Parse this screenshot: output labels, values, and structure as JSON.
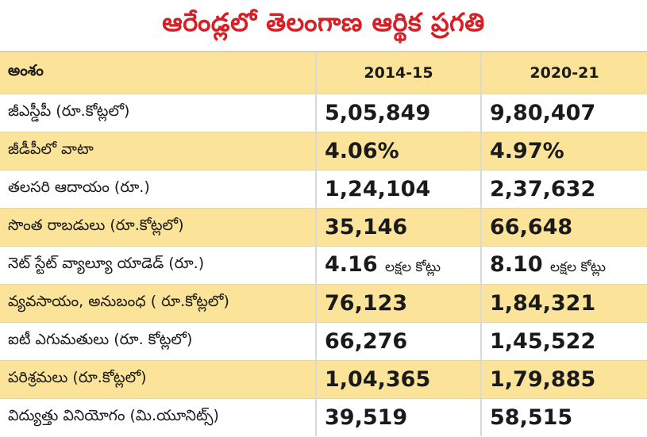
{
  "title": "ఆరేండ్లలో తెలంగాణ ఆర్థిక ప్రగతి",
  "colors": {
    "title": "#d81f26",
    "shaded_row": "#fbe39a",
    "plain_row": "#ffffff"
  },
  "table": {
    "headers": {
      "item": "అంశం",
      "year1": "2014-15",
      "year2": "2020-21"
    },
    "rows": [
      {
        "label": "జీఎస్డీపీ (రూ.కోట్లలో)",
        "y1": "5,05,849",
        "y2": "9,80,407"
      },
      {
        "label": "జీడీపీలో వాటా",
        "y1": "4.06%",
        "y2": "4.97%"
      },
      {
        "label": "తలసరి ఆదాయం (రూ.)",
        "y1": "1,24,104",
        "y2": "2,37,632"
      },
      {
        "label": "సొంత రాబడులు (రూ.కోట్లలో)",
        "y1": "35,146",
        "y2": "66,648"
      },
      {
        "label": "నెట్ స్టేట్ వ్యాల్యూ యాడెడ్ (రూ.)",
        "y1": "4.16",
        "y1_suffix": "లక్షల కోట్లు",
        "y2": "8.10",
        "y2_suffix": "లక్షల కోట్లు"
      },
      {
        "label": "వ్యవసాయం, అనుబంధ ( రూ.కోట్లలో)",
        "y1": "76,123",
        "y2": "1,84,321"
      },
      {
        "label": "ఐటీ ఎగుమతులు (రూ. కోట్లలో)",
        "y1": "66,276",
        "y2": "1,45,522"
      },
      {
        "label": "పరిశ్రమలు (రూ.కోట్లలో)",
        "y1": "1,04,365",
        "y2": "1,79,885"
      },
      {
        "label": "విద్యుత్తు వినియోగం (మి.యూనిట్స్)",
        "y1": "39,519",
        "y2": "58,515"
      }
    ]
  }
}
